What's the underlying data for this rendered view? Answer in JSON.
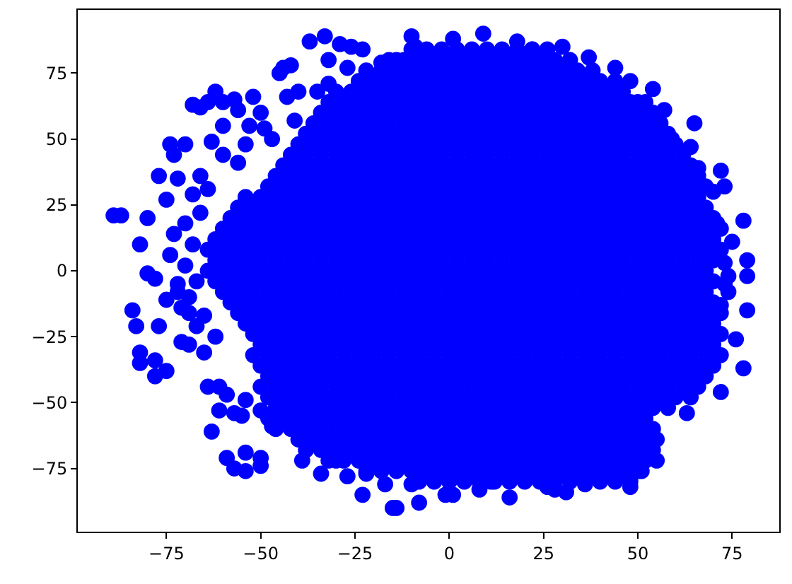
{
  "chart_data": {
    "type": "scatter",
    "color": "#0000ff",
    "marker": "circle",
    "xlim": [
      -98.5,
      87.5
    ],
    "ylim": [
      -99,
      99
    ],
    "xticks": [
      {
        "value": -75,
        "label": "−75"
      },
      {
        "value": -50,
        "label": "−50"
      },
      {
        "value": -25,
        "label": "−25"
      },
      0,
      25,
      50,
      75
    ],
    "yticks": [
      {
        "value": -75,
        "label": "−75"
      },
      {
        "value": -50,
        "label": "−50"
      },
      {
        "value": -25,
        "label": "−25"
      },
      0,
      25,
      50,
      75
    ],
    "x": [
      -89,
      -87,
      -80,
      -82,
      -74,
      -80,
      -78,
      -77,
      -72,
      -75,
      -73,
      -74,
      -70,
      -73,
      -66,
      -68,
      -64,
      -63,
      -60,
      -60,
      -68,
      -64,
      -62,
      -57,
      -52,
      -66,
      -60,
      -56,
      -50,
      -53,
      -54,
      -56,
      -49,
      -47,
      -44,
      -42,
      -45,
      -43,
      -40,
      -41,
      -37,
      -33,
      -29,
      -26,
      -23,
      -32,
      -27,
      -35,
      -32,
      -18,
      -14,
      -10,
      -9,
      -70,
      -68,
      -66,
      -70,
      -67,
      -72,
      1,
      9,
      18,
      22,
      30,
      37,
      44,
      48,
      54,
      50,
      57,
      65,
      64,
      59,
      66,
      72,
      73,
      70,
      71,
      78,
      75,
      73,
      79,
      79,
      74,
      73,
      74,
      72,
      79,
      78,
      76,
      72,
      63,
      55,
      55,
      51,
      48,
      36,
      31,
      28,
      26,
      11,
      8,
      16,
      1,
      -1,
      -8,
      -10,
      -14,
      -84,
      -83,
      -77,
      -82,
      -82,
      -78,
      -75,
      -78,
      -71,
      -69,
      -69,
      -75,
      -72,
      -67,
      -65,
      -62,
      -64,
      -61,
      -59,
      -54,
      -61,
      -57,
      -55,
      -63,
      -59,
      -57,
      -54,
      -50,
      -54,
      -50,
      -50,
      -47,
      -39,
      -34,
      -30,
      -27,
      -23,
      -22,
      -17,
      -15,
      -71,
      -69,
      -65,
      -10,
      -6,
      -2,
      2,
      6,
      10,
      14,
      18,
      22,
      26,
      -16,
      -12,
      -8,
      -4,
      0,
      4,
      8,
      12,
      16,
      20,
      24,
      28,
      32,
      -22,
      -18,
      -14,
      -10,
      -6,
      -2,
      2,
      6,
      10,
      14,
      18,
      22,
      26,
      30,
      34,
      38,
      -24,
      -20,
      -16,
      -12,
      -8,
      -4,
      0,
      4,
      8,
      12,
      16,
      20,
      24,
      28,
      32,
      36,
      40,
      44,
      -30,
      -26,
      -22,
      -18,
      -14,
      -10,
      -6,
      -2,
      2,
      6,
      10,
      14,
      18,
      22,
      26,
      30,
      34,
      38,
      42,
      46,
      -32,
      -28,
      -24,
      -20,
      -16,
      -12,
      -8,
      -4,
      0,
      4,
      8,
      12,
      16,
      20,
      24,
      28,
      32,
      36,
      40,
      44,
      48,
      52,
      -34,
      -30,
      -26,
      -22,
      -18,
      -14,
      -10,
      -6,
      -2,
      2,
      6,
      10,
      14,
      18,
      22,
      26,
      30,
      34,
      38,
      42,
      46,
      50,
      54,
      -36,
      -32,
      -28,
      -24,
      -20,
      -16,
      -12,
      -8,
      -4,
      0,
      4,
      8,
      12,
      16,
      20,
      24,
      28,
      32,
      36,
      40,
      44,
      48,
      52,
      56,
      -38,
      -34,
      -30,
      -26,
      -22,
      -18,
      -14,
      -10,
      -6,
      -2,
      2,
      6,
      10,
      14,
      18,
      22,
      26,
      30,
      34,
      38,
      42,
      46,
      50,
      54,
      58,
      -40,
      -36,
      -32,
      -28,
      -24,
      -20,
      -16,
      -12,
      -8,
      -4,
      0,
      4,
      8,
      12,
      16,
      20,
      24,
      28,
      32,
      36,
      40,
      44,
      48,
      52,
      56,
      60,
      -42,
      -38,
      -34,
      -30,
      -26,
      -22,
      -18,
      -14,
      -10,
      -6,
      -2,
      2,
      6,
      10,
      14,
      18,
      22,
      26,
      30,
      34,
      38,
      42,
      46,
      50,
      54,
      58,
      62,
      -44,
      -40,
      -36,
      -32,
      -28,
      -24,
      -20,
      -16,
      -12,
      -8,
      -4,
      0,
      4,
      8,
      12,
      16,
      20,
      24,
      28,
      32,
      36,
      40,
      44,
      48,
      52,
      56,
      60,
      64,
      -46,
      -42,
      -38,
      -34,
      -30,
      -26,
      -22,
      -18,
      -14,
      -10,
      -6,
      -2,
      2,
      6,
      10,
      14,
      18,
      22,
      26,
      30,
      34,
      38,
      42,
      46,
      50,
      54,
      58,
      62,
      66,
      -48,
      -44,
      -40,
      -36,
      -32,
      -28,
      -24,
      -20,
      -16,
      -12,
      -8,
      -4,
      0,
      4,
      8,
      12,
      16,
      20,
      24,
      28,
      32,
      36,
      40,
      44,
      48,
      52,
      56,
      60,
      64,
      68,
      -54,
      -50,
      -46,
      -42,
      -38,
      -34,
      -30,
      -26,
      -22,
      -18,
      -14,
      -10,
      -6,
      -2,
      2,
      6,
      10,
      14,
      18,
      22,
      26,
      30,
      34,
      38,
      42,
      46,
      50,
      54,
      58,
      62,
      66,
      -56,
      -52,
      -48,
      -44,
      -40,
      -36,
      -32,
      -28,
      -24,
      -20,
      -16,
      -12,
      -8,
      -4,
      0,
      4,
      8,
      12,
      16,
      20,
      24,
      28,
      32,
      36,
      40,
      44,
      48,
      52,
      56,
      60,
      64,
      68,
      -58,
      -54,
      -50,
      -46,
      -42,
      -38,
      -34,
      -30,
      -26,
      -22,
      -18,
      -14,
      -10,
      -6,
      -2,
      2,
      6,
      10,
      14,
      18,
      22,
      26,
      30,
      34,
      38,
      42,
      46,
      50,
      54,
      58,
      62,
      66,
      70,
      -60,
      -56,
      -52,
      -48,
      -44,
      -40,
      -36,
      -32,
      -28,
      -24,
      -20,
      -16,
      -12,
      -8,
      -4,
      0,
      4,
      8,
      12,
      16,
      20,
      24,
      28,
      32,
      36,
      40,
      44,
      48,
      52,
      56,
      60,
      64,
      68,
      72,
      -62,
      -58,
      -54,
      -50,
      -46,
      -42,
      -38,
      -34,
      -30,
      -26,
      -22,
      -18,
      -14,
      -10,
      -6,
      -2,
      2,
      6,
      10,
      14,
      18,
      22,
      26,
      30,
      34,
      38,
      42,
      46,
      50,
      54,
      58,
      62,
      66,
      70,
      -64,
      -60,
      -56,
      -52,
      -48,
      -44,
      -40,
      -36,
      -32,
      -28,
      -24,
      -20,
      -16,
      -12,
      -8,
      -4,
      0,
      4,
      8,
      12,
      16,
      20,
      24,
      28,
      32,
      36,
      40,
      44,
      48,
      52,
      56,
      60,
      64,
      68,
      72,
      -62,
      -58,
      -54,
      -50,
      -46,
      -42,
      -38,
      -34,
      -30,
      -26,
      -22,
      -18,
      -14,
      -10,
      -6,
      -2,
      2,
      6,
      10,
      14,
      18,
      22,
      26,
      30,
      34,
      38,
      42,
      46,
      50,
      54,
      58,
      62,
      66,
      70,
      -64,
      -60,
      -56,
      -52,
      -48,
      -44,
      -40,
      -36,
      -32,
      -28,
      -24,
      -20,
      -16,
      -12,
      -8,
      -4,
      0,
      4,
      8,
      12,
      16,
      20,
      24,
      28,
      32,
      36,
      40,
      44,
      48,
      52,
      56,
      60,
      64,
      68,
      -62,
      -58,
      -54,
      -50,
      -46,
      -42,
      -38,
      -34,
      -30,
      -26,
      -22,
      -18,
      -14,
      -10,
      -6,
      -2,
      2,
      6,
      10,
      14,
      18,
      22,
      26,
      30,
      34,
      38,
      42,
      46,
      50,
      54,
      58,
      62,
      66,
      70,
      -60,
      -56,
      -52,
      -48,
      -44,
      -40,
      -36,
      -32,
      -28,
      -24,
      -20,
      -16,
      -12,
      -8,
      -4,
      0,
      4,
      8,
      12,
      16,
      20,
      24,
      28,
      32,
      36,
      40,
      44,
      48,
      52,
      56,
      60,
      64,
      68,
      -58,
      -54,
      -50,
      -46,
      -42,
      -38,
      -34,
      -30,
      -26,
      -22,
      -18,
      -14,
      -10,
      -6,
      -2,
      2,
      6,
      10,
      14,
      18,
      22,
      26,
      30,
      34,
      38,
      42,
      46,
      50,
      54,
      58,
      62,
      66,
      70,
      -56,
      -52,
      -48,
      -44,
      -40,
      -36,
      -32,
      -28,
      -24,
      -20,
      -16,
      -12,
      -8,
      -4,
      0,
      4,
      8,
      12,
      16,
      20,
      24,
      28,
      32,
      36,
      40,
      44,
      48,
      52,
      56,
      60,
      64,
      68,
      72,
      -54,
      -50,
      -46,
      -42,
      -38,
      -34,
      -30,
      -26,
      -22,
      -18,
      -14,
      -10,
      -6,
      -2,
      2,
      6,
      10,
      14,
      18,
      22,
      26,
      30,
      34,
      38,
      42,
      46,
      50,
      54,
      58,
      62,
      66,
      70,
      -52,
      -48,
      -44,
      -40,
      -36,
      -32,
      -28,
      -24,
      -20,
      -16,
      -12,
      -8,
      -4,
      0,
      4,
      8,
      12,
      16,
      20,
      24,
      28,
      32,
      36,
      40,
      44,
      48,
      52,
      56,
      60,
      64,
      68,
      72,
      -50,
      -46,
      -42,
      -38,
      -34,
      -30,
      -26,
      -22,
      -18,
      -14,
      -10,
      -6,
      -2,
      2,
      6,
      10,
      14,
      18,
      22,
      26,
      30,
      34,
      38,
      42,
      46,
      50,
      54,
      58,
      62,
      66,
      70,
      -52,
      -48,
      -44,
      -40,
      -36,
      -32,
      -28,
      -24,
      -20,
      -16,
      -12,
      -8,
      -4,
      0,
      4,
      8,
      12,
      16,
      20,
      24,
      28,
      32,
      36,
      40,
      44,
      48,
      52,
      56,
      60,
      64,
      68,
      72,
      -50,
      -46,
      -42,
      -38,
      -34,
      -30,
      -26,
      -22,
      -18,
      -14,
      -10,
      -6,
      -2,
      2,
      6,
      10,
      14,
      18,
      22,
      26,
      30,
      34,
      38,
      42,
      46,
      50,
      54,
      58,
      62,
      66,
      70,
      -48,
      -44,
      -40,
      -36,
      -32,
      -28,
      -24,
      -20,
      -16,
      -12,
      -8,
      -4,
      0,
      4,
      8,
      12,
      16,
      20,
      24,
      28,
      32,
      36,
      40,
      44,
      48,
      52,
      56,
      60,
      64,
      68,
      -50,
      -46,
      -42,
      -38,
      -34,
      -30,
      -26,
      -22,
      -18,
      -14,
      -10,
      -6,
      -2,
      2,
      6,
      10,
      14,
      18,
      22,
      26,
      30,
      34,
      38,
      42,
      46,
      50,
      54,
      58,
      62,
      66,
      -48,
      -44,
      -40,
      -36,
      -32,
      -28,
      -24,
      -20,
      -16,
      -12,
      -8,
      -4,
      0,
      4,
      8,
      12,
      16,
      20,
      24,
      28,
      32,
      36,
      40,
      44,
      48,
      52,
      56,
      60,
      64,
      -46,
      -42,
      -38,
      -34,
      -30,
      -26,
      -22,
      -18,
      -14,
      -10,
      -6,
      -2,
      2,
      6,
      10,
      14,
      18,
      22,
      26,
      30,
      34,
      38,
      42,
      46,
      50,
      54,
      58,
      -48,
      -44,
      -40,
      -36,
      -32,
      -28,
      -24,
      -20,
      -16,
      -12,
      -8,
      -4,
      0,
      4,
      8,
      12,
      16,
      20,
      24,
      28,
      32,
      36,
      40,
      44,
      48,
      52,
      -46,
      -42,
      -38,
      -34,
      -30,
      -26,
      -22,
      -18,
      -14,
      -10,
      -6,
      -2,
      2,
      6,
      10,
      14,
      18,
      22,
      26,
      30,
      34,
      38,
      42,
      46,
      50,
      54,
      -40,
      -36,
      -32,
      -28,
      -24,
      -20,
      -16,
      -12,
      -8,
      -4,
      0,
      4,
      8,
      12,
      16,
      20,
      24,
      28,
      32,
      36,
      40,
      44,
      48,
      52,
      -38,
      -34,
      -30,
      -26,
      -22,
      -18,
      -14,
      -10,
      -6,
      -2,
      2,
      6,
      10,
      14,
      18,
      22,
      26,
      30,
      34,
      38,
      42,
      46,
      50,
      54,
      -32,
      -28,
      -24,
      -20,
      -16,
      -12,
      -8,
      -4,
      0,
      4,
      8,
      12,
      16,
      20,
      24,
      28,
      32,
      36,
      40,
      44,
      48,
      52,
      -22,
      -18,
      -14,
      -10,
      -6,
      -2,
      2,
      6,
      10,
      14,
      18,
      22,
      26,
      30,
      34,
      38,
      42,
      46,
      50,
      -8,
      -4,
      0,
      4,
      8,
      12,
      16,
      20,
      24,
      28,
      32,
      36,
      40,
      44,
      48
    ],
    "values": [
      21,
      21,
      20,
      10,
      6,
      -1,
      -3,
      36,
      35,
      27,
      14,
      48,
      48,
      44,
      36,
      29,
      31,
      49,
      44,
      55,
      63,
      64,
      68,
      65,
      66,
      62,
      64,
      61,
      60,
      55,
      48,
      41,
      54,
      50,
      77,
      78,
      75,
      66,
      68,
      57,
      87,
      89,
      86,
      85,
      84,
      80,
      77,
      68,
      71,
      79,
      80,
      89,
      85,
      18,
      10,
      22,
      2,
      -4,
      -5,
      88,
      90,
      87,
      84,
      85,
      81,
      77,
      72,
      69,
      64,
      61,
      56,
      47,
      50,
      39,
      38,
      32,
      30,
      18,
      19,
      11,
      3,
      4,
      -2,
      -2,
      -5,
      -8,
      -13,
      -15,
      -37,
      -26,
      -46,
      -54,
      -64,
      -72,
      -76,
      -82,
      -81,
      -84,
      -83,
      -82,
      -80,
      -83,
      -86,
      -85,
      -85,
      -88,
      -81,
      -90,
      -15,
      -21,
      -21,
      -31,
      -35,
      -34,
      -38,
      -40,
      -27,
      -28,
      -16,
      -11,
      -8,
      -21,
      -31,
      -25,
      -44,
      -44,
      -47,
      -49,
      -53,
      -54,
      -55,
      -61,
      -71,
      -75,
      -69,
      -71,
      -76,
      -74,
      -53,
      -59,
      -72,
      -77,
      -72,
      -78,
      -85,
      -77,
      -81,
      -90,
      -14,
      -10,
      -17,
      84,
      84,
      84,
      84,
      84,
      84,
      84,
      84,
      84,
      84,
      80,
      80,
      80,
      80,
      80,
      80,
      80,
      80,
      80,
      80,
      80,
      80,
      80,
      76,
      76,
      76,
      76,
      76,
      76,
      76,
      76,
      76,
      76,
      76,
      76,
      76,
      76,
      76,
      76,
      72,
      72,
      72,
      72,
      72,
      72,
      72,
      72,
      72,
      72,
      72,
      72,
      72,
      72,
      72,
      72,
      72,
      72,
      68,
      68,
      68,
      68,
      68,
      68,
      68,
      68,
      68,
      68,
      68,
      68,
      68,
      68,
      68,
      68,
      68,
      68,
      68,
      68,
      64,
      64,
      64,
      64,
      64,
      64,
      64,
      64,
      64,
      64,
      64,
      64,
      64,
      64,
      64,
      64,
      64,
      64,
      64,
      64,
      64,
      64,
      60,
      60,
      60,
      60,
      60,
      60,
      60,
      60,
      60,
      60,
      60,
      60,
      60,
      60,
      60,
      60,
      60,
      60,
      60,
      60,
      60,
      60,
      60,
      56,
      56,
      56,
      56,
      56,
      56,
      56,
      56,
      56,
      56,
      56,
      56,
      56,
      56,
      56,
      56,
      56,
      56,
      56,
      56,
      56,
      56,
      56,
      56,
      52,
      52,
      52,
      52,
      52,
      52,
      52,
      52,
      52,
      52,
      52,
      52,
      52,
      52,
      52,
      52,
      52,
      52,
      52,
      52,
      52,
      52,
      52,
      52,
      52,
      48,
      48,
      48,
      48,
      48,
      48,
      48,
      48,
      48,
      48,
      48,
      48,
      48,
      48,
      48,
      48,
      48,
      48,
      48,
      48,
      48,
      48,
      48,
      48,
      48,
      48,
      44,
      44,
      44,
      44,
      44,
      44,
      44,
      44,
      44,
      44,
      44,
      44,
      44,
      44,
      44,
      44,
      44,
      44,
      44,
      44,
      44,
      44,
      44,
      44,
      44,
      44,
      44,
      40,
      40,
      40,
      40,
      40,
      40,
      40,
      40,
      40,
      40,
      40,
      40,
      40,
      40,
      40,
      40,
      40,
      40,
      40,
      40,
      40,
      40,
      40,
      40,
      40,
      40,
      40,
      40,
      36,
      36,
      36,
      36,
      36,
      36,
      36,
      36,
      36,
      36,
      36,
      36,
      36,
      36,
      36,
      36,
      36,
      36,
      36,
      36,
      36,
      36,
      36,
      36,
      36,
      36,
      36,
      36,
      36,
      32,
      32,
      32,
      32,
      32,
      32,
      32,
      32,
      32,
      32,
      32,
      32,
      32,
      32,
      32,
      32,
      32,
      32,
      32,
      32,
      32,
      32,
      32,
      32,
      32,
      32,
      32,
      32,
      32,
      32,
      28,
      28,
      28,
      28,
      28,
      28,
      28,
      28,
      28,
      28,
      28,
      28,
      28,
      28,
      28,
      28,
      28,
      28,
      28,
      28,
      28,
      28,
      28,
      28,
      28,
      28,
      28,
      28,
      28,
      28,
      28,
      24,
      24,
      24,
      24,
      24,
      24,
      24,
      24,
      24,
      24,
      24,
      24,
      24,
      24,
      24,
      24,
      24,
      24,
      24,
      24,
      24,
      24,
      24,
      24,
      24,
      24,
      24,
      24,
      24,
      24,
      24,
      24,
      20,
      20,
      20,
      20,
      20,
      20,
      20,
      20,
      20,
      20,
      20,
      20,
      20,
      20,
      20,
      20,
      20,
      20,
      20,
      20,
      20,
      20,
      20,
      20,
      20,
      20,
      20,
      20,
      20,
      20,
      20,
      20,
      20,
      16,
      16,
      16,
      16,
      16,
      16,
      16,
      16,
      16,
      16,
      16,
      16,
      16,
      16,
      16,
      16,
      16,
      16,
      16,
      16,
      16,
      16,
      16,
      16,
      16,
      16,
      16,
      16,
      16,
      16,
      16,
      16,
      16,
      16,
      12,
      12,
      12,
      12,
      12,
      12,
      12,
      12,
      12,
      12,
      12,
      12,
      12,
      12,
      12,
      12,
      12,
      12,
      12,
      12,
      12,
      12,
      12,
      12,
      12,
      12,
      12,
      12,
      12,
      12,
      12,
      12,
      12,
      12,
      8,
      8,
      8,
      8,
      8,
      8,
      8,
      8,
      8,
      8,
      8,
      8,
      8,
      8,
      8,
      8,
      8,
      8,
      8,
      8,
      8,
      8,
      8,
      8,
      8,
      8,
      8,
      8,
      8,
      8,
      8,
      8,
      8,
      8,
      8,
      4,
      4,
      4,
      4,
      4,
      4,
      4,
      4,
      4,
      4,
      4,
      4,
      4,
      4,
      4,
      4,
      4,
      4,
      4,
      4,
      4,
      4,
      4,
      4,
      4,
      4,
      4,
      4,
      4,
      4,
      4,
      4,
      4,
      4,
      0,
      0,
      0,
      0,
      0,
      0,
      0,
      0,
      0,
      0,
      0,
      0,
      0,
      0,
      0,
      0,
      0,
      0,
      0,
      0,
      0,
      0,
      0,
      0,
      0,
      0,
      0,
      0,
      0,
      0,
      0,
      0,
      0,
      0,
      -4,
      -4,
      -4,
      -4,
      -4,
      -4,
      -4,
      -4,
      -4,
      -4,
      -4,
      -4,
      -4,
      -4,
      -4,
      -4,
      -4,
      -4,
      -4,
      -4,
      -4,
      -4,
      -4,
      -4,
      -4,
      -4,
      -4,
      -4,
      -4,
      -4,
      -4,
      -4,
      -4,
      -4,
      -8,
      -8,
      -8,
      -8,
      -8,
      -8,
      -8,
      -8,
      -8,
      -8,
      -8,
      -8,
      -8,
      -8,
      -8,
      -8,
      -8,
      -8,
      -8,
      -8,
      -8,
      -8,
      -8,
      -8,
      -8,
      -8,
      -8,
      -8,
      -8,
      -8,
      -8,
      -8,
      -8,
      -12,
      -12,
      -12,
      -12,
      -12,
      -12,
      -12,
      -12,
      -12,
      -12,
      -12,
      -12,
      -12,
      -12,
      -12,
      -12,
      -12,
      -12,
      -12,
      -12,
      -12,
      -12,
      -12,
      -12,
      -12,
      -12,
      -12,
      -12,
      -12,
      -12,
      -12,
      -12,
      -12,
      -16,
      -16,
      -16,
      -16,
      -16,
      -16,
      -16,
      -16,
      -16,
      -16,
      -16,
      -16,
      -16,
      -16,
      -16,
      -16,
      -16,
      -16,
      -16,
      -16,
      -16,
      -16,
      -16,
      -16,
      -16,
      -16,
      -16,
      -16,
      -16,
      -16,
      -16,
      -16,
      -16,
      -20,
      -20,
      -20,
      -20,
      -20,
      -20,
      -20,
      -20,
      -20,
      -20,
      -20,
      -20,
      -20,
      -20,
      -20,
      -20,
      -20,
      -20,
      -20,
      -20,
      -20,
      -20,
      -20,
      -20,
      -20,
      -20,
      -20,
      -20,
      -20,
      -20,
      -20,
      -20,
      -24,
      -24,
      -24,
      -24,
      -24,
      -24,
      -24,
      -24,
      -24,
      -24,
      -24,
      -24,
      -24,
      -24,
      -24,
      -24,
      -24,
      -24,
      -24,
      -24,
      -24,
      -24,
      -24,
      -24,
      -24,
      -24,
      -24,
      -24,
      -24,
      -24,
      -24,
      -24,
      -28,
      -28,
      -28,
      -28,
      -28,
      -28,
      -28,
      -28,
      -28,
      -28,
      -28,
      -28,
      -28,
      -28,
      -28,
      -28,
      -28,
      -28,
      -28,
      -28,
      -28,
      -28,
      -28,
      -28,
      -28,
      -28,
      -28,
      -28,
      -28,
      -28,
      -28,
      -32,
      -32,
      -32,
      -32,
      -32,
      -32,
      -32,
      -32,
      -32,
      -32,
      -32,
      -32,
      -32,
      -32,
      -32,
      -32,
      -32,
      -32,
      -32,
      -32,
      -32,
      -32,
      -32,
      -32,
      -32,
      -32,
      -32,
      -32,
      -32,
      -32,
      -32,
      -32,
      -36,
      -36,
      -36,
      -36,
      -36,
      -36,
      -36,
      -36,
      -36,
      -36,
      -36,
      -36,
      -36,
      -36,
      -36,
      -36,
      -36,
      -36,
      -36,
      -36,
      -36,
      -36,
      -36,
      -36,
      -36,
      -36,
      -36,
      -36,
      -36,
      -36,
      -36,
      -40,
      -40,
      -40,
      -40,
      -40,
      -40,
      -40,
      -40,
      -40,
      -40,
      -40,
      -40,
      -40,
      -40,
      -40,
      -40,
      -40,
      -40,
      -40,
      -40,
      -40,
      -40,
      -40,
      -40,
      -40,
      -40,
      -40,
      -40,
      -40,
      -40,
      -44,
      -44,
      -44,
      -44,
      -44,
      -44,
      -44,
      -44,
      -44,
      -44,
      -44,
      -44,
      -44,
      -44,
      -44,
      -44,
      -44,
      -44,
      -44,
      -44,
      -44,
      -44,
      -44,
      -44,
      -44,
      -44,
      -44,
      -44,
      -44,
      -44,
      -48,
      -48,
      -48,
      -48,
      -48,
      -48,
      -48,
      -48,
      -48,
      -48,
      -48,
      -48,
      -48,
      -48,
      -48,
      -48,
      -48,
      -48,
      -48,
      -48,
      -48,
      -48,
      -48,
      -48,
      -48,
      -48,
      -48,
      -48,
      -48,
      -52,
      -52,
      -52,
      -52,
      -52,
      -52,
      -52,
      -52,
      -52,
      -52,
      -52,
      -52,
      -52,
      -52,
      -52,
      -52,
      -52,
      -52,
      -52,
      -52,
      -52,
      -52,
      -52,
      -52,
      -52,
      -52,
      -52,
      -56,
      -56,
      -56,
      -56,
      -56,
      -56,
      -56,
      -56,
      -56,
      -56,
      -56,
      -56,
      -56,
      -56,
      -56,
      -56,
      -56,
      -56,
      -56,
      -56,
      -56,
      -56,
      -56,
      -56,
      -56,
      -56,
      -60,
      -60,
      -60,
      -60,
      -60,
      -60,
      -60,
      -60,
      -60,
      -60,
      -60,
      -60,
      -60,
      -60,
      -60,
      -60,
      -60,
      -60,
      -60,
      -60,
      -60,
      -60,
      -60,
      -60,
      -60,
      -60,
      -64,
      -64,
      -64,
      -64,
      -64,
      -64,
      -64,
      -64,
      -64,
      -64,
      -64,
      -64,
      -64,
      -64,
      -64,
      -64,
      -64,
      -64,
      -64,
      -64,
      -64,
      -64,
      -64,
      -64,
      -68,
      -68,
      -68,
      -68,
      -68,
      -68,
      -68,
      -68,
      -68,
      -68,
      -68,
      -68,
      -68,
      -68,
      -68,
      -68,
      -68,
      -68,
      -68,
      -68,
      -68,
      -68,
      -68,
      -68,
      -72,
      -72,
      -72,
      -72,
      -72,
      -72,
      -72,
      -72,
      -72,
      -72,
      -72,
      -72,
      -72,
      -72,
      -72,
      -72,
      -72,
      -72,
      -72,
      -72,
      -72,
      -72,
      -76,
      -76,
      -76,
      -76,
      -76,
      -76,
      -76,
      -76,
      -76,
      -76,
      -76,
      -76,
      -76,
      -76,
      -76,
      -76,
      -76,
      -76,
      -76,
      -80,
      -80,
      -80,
      -80,
      -80,
      -80,
      -80,
      -80,
      -80,
      -80,
      -80,
      -80,
      -80,
      -80,
      -80
    ]
  }
}
